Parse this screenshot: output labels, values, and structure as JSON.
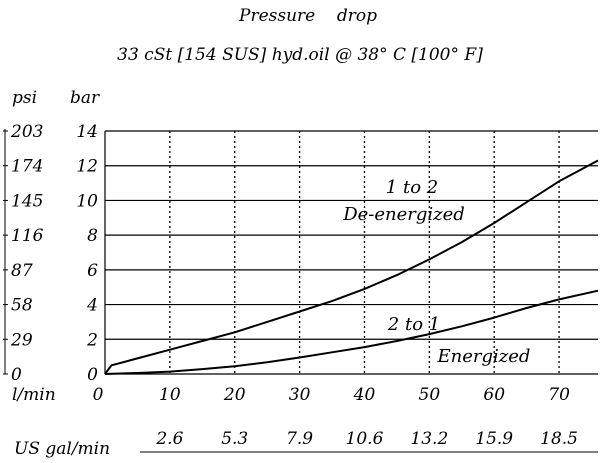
{
  "chart_data": {
    "type": "line",
    "title": "Pressure    drop",
    "subtitle": "33 cSt [154 SUS] hyd.oil @ 38° C [100° F]",
    "xlabel": "l/min",
    "x_secondary_label": "US gal/min",
    "ylabel_left": "psi",
    "ylabel_right": "bar",
    "xlim": [
      0,
      76
    ],
    "ylim": [
      0,
      14
    ],
    "x_ticks": [
      0,
      10,
      20,
      30,
      40,
      50,
      60,
      70
    ],
    "x_tick_labels": [
      "0",
      "10",
      "20",
      "30",
      "40",
      "50",
      "60",
      "70"
    ],
    "x_secondary_ticks": [
      10,
      20,
      30,
      40,
      50,
      60,
      70
    ],
    "x_secondary_tick_labels": [
      "2.6",
      "5.3",
      "7.9",
      "10.6",
      "13.2",
      "15.9",
      "18.5"
    ],
    "y_ticks": [
      0,
      2,
      4,
      6,
      8,
      10,
      12,
      14
    ],
    "y_bar_tick_labels": [
      "0",
      "2",
      "4",
      "6",
      "8",
      "10",
      "12",
      "14"
    ],
    "y_psi_tick_labels": [
      "0",
      "29",
      "58",
      "87",
      "116",
      "145",
      "174",
      "203"
    ],
    "grid": true,
    "series": [
      {
        "name": "1 to 2 De-energized",
        "label_lines": [
          "1 to 2",
          "De-energized"
        ],
        "x": [
          0,
          1,
          5,
          10,
          15,
          20,
          25,
          30,
          35,
          40,
          45,
          50,
          55,
          60,
          65,
          70,
          76
        ],
        "y": [
          0,
          0.5,
          0.9,
          1.4,
          1.9,
          2.4,
          3.0,
          3.6,
          4.2,
          4.9,
          5.7,
          6.6,
          7.6,
          8.7,
          9.9,
          11.1,
          12.3
        ]
      },
      {
        "name": "2 to 1 Energized",
        "label_lines": [
          "2 to 1",
          "Energized"
        ],
        "x": [
          0,
          1,
          5,
          10,
          15,
          20,
          25,
          30,
          35,
          40,
          45,
          50,
          55,
          60,
          65,
          70,
          76
        ],
        "y": [
          0,
          0.02,
          0.06,
          0.14,
          0.28,
          0.45,
          0.68,
          0.95,
          1.25,
          1.55,
          1.9,
          2.3,
          2.75,
          3.25,
          3.8,
          4.3,
          4.8
        ]
      }
    ]
  }
}
